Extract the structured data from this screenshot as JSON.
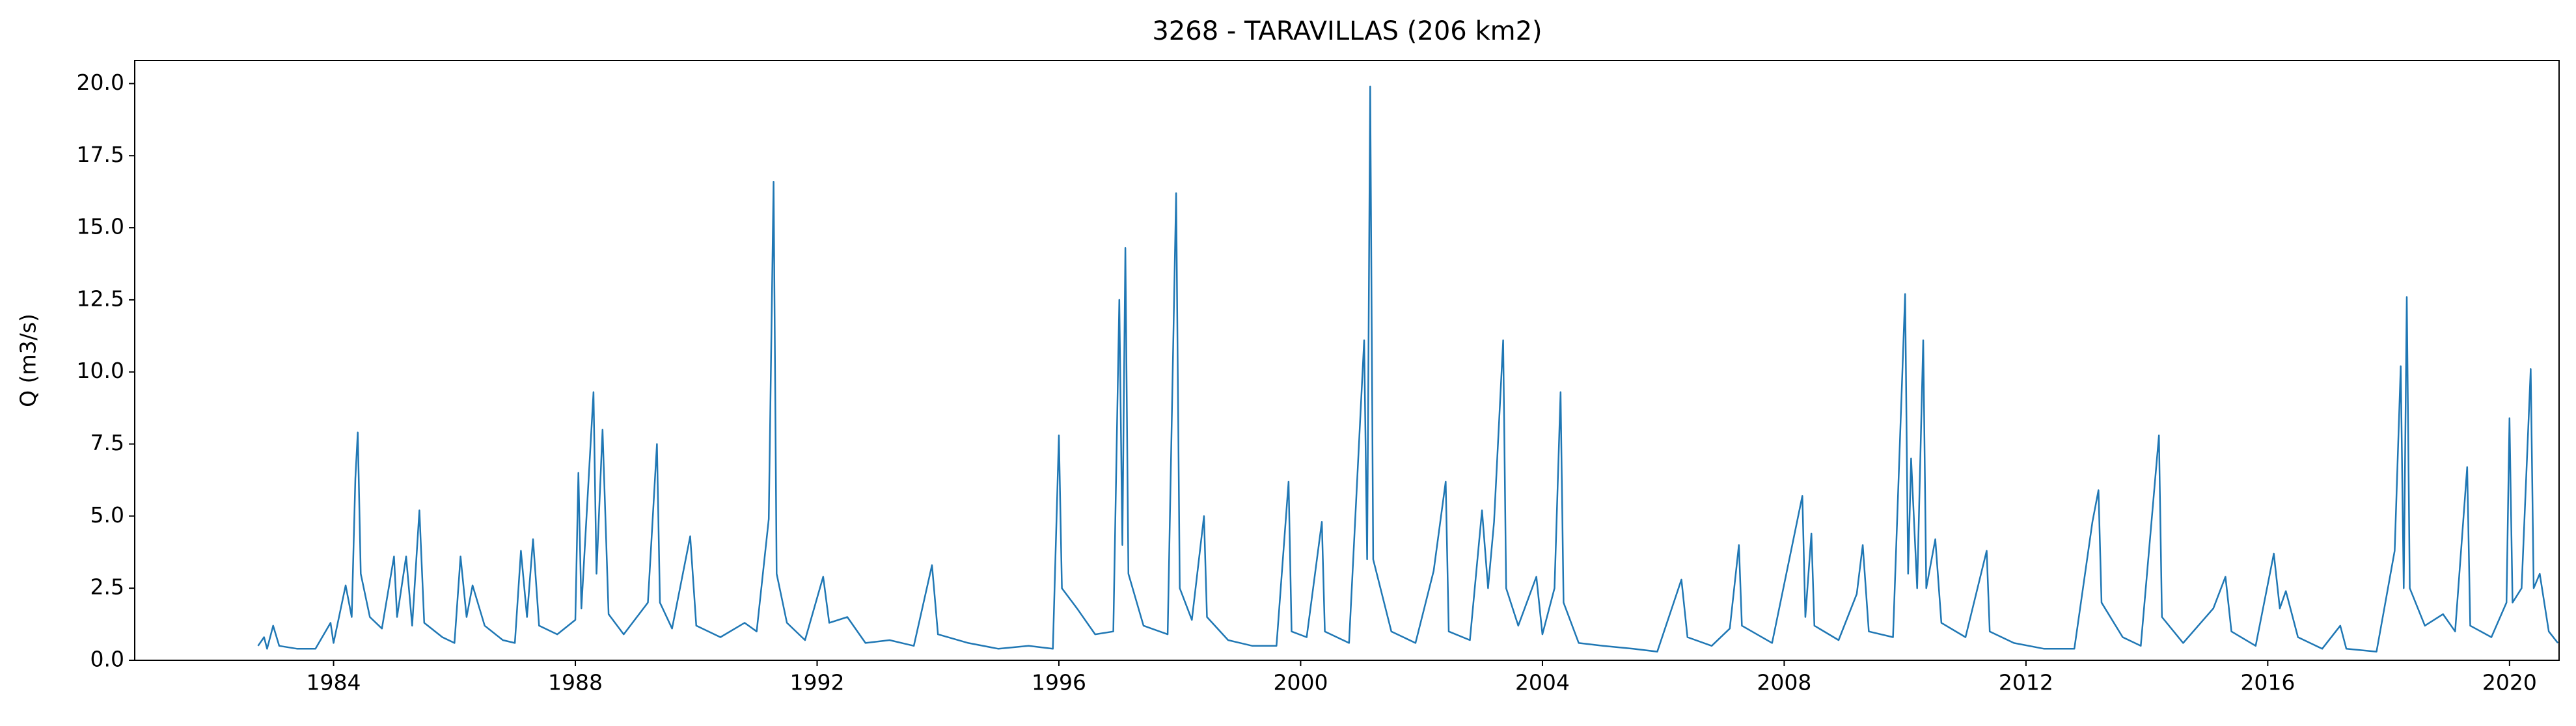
{
  "chart_data": {
    "type": "line",
    "title": "3268 - TARAVILLAS (206 km2)",
    "ylabel": "Q (m3/s)",
    "xlim": [
      1980.71,
      2020.82
    ],
    "ylim": [
      0,
      20.8
    ],
    "xticks": [
      1984,
      1988,
      1992,
      1996,
      2000,
      2004,
      2008,
      2012,
      2016,
      2020
    ],
    "yticks": [
      {
        "value": 0,
        "label": "0.0"
      },
      2.5,
      {
        "value": 5,
        "label": "5.0"
      },
      7.5,
      {
        "value": 10,
        "label": "10.0"
      },
      12.5,
      {
        "value": 15,
        "label": "15.0"
      },
      17.5,
      {
        "value": 20,
        "label": "20.0"
      }
    ],
    "grid": false,
    "series": [
      {
        "color": "#1f77b4",
        "x": [
          1982.75,
          1982.85,
          1982.9,
          1983.0,
          1983.1,
          1983.4,
          1983.7,
          1983.95,
          1984.0,
          1984.2,
          1984.3,
          1984.36,
          1984.4,
          1984.45,
          1984.6,
          1984.8,
          1985.0,
          1985.05,
          1985.2,
          1985.3,
          1985.42,
          1985.5,
          1985.8,
          1986.0,
          1986.1,
          1986.2,
          1986.3,
          1986.5,
          1986.8,
          1987.0,
          1987.1,
          1987.2,
          1987.3,
          1987.4,
          1987.7,
          1988.0,
          1988.05,
          1988.1,
          1988.3,
          1988.35,
          1988.45,
          1988.55,
          1988.8,
          1989.2,
          1989.35,
          1989.4,
          1989.6,
          1989.9,
          1990.0,
          1990.4,
          1990.8,
          1991.0,
          1991.2,
          1991.28,
          1991.33,
          1991.5,
          1991.8,
          1992.1,
          1992.2,
          1992.5,
          1992.8,
          1993.2,
          1993.6,
          1993.9,
          1994.0,
          1994.5,
          1995.0,
          1995.5,
          1995.9,
          1996.0,
          1996.05,
          1996.3,
          1996.6,
          1996.9,
          1997.0,
          1997.05,
          1997.1,
          1997.15,
          1997.4,
          1997.8,
          1997.94,
          1998.0,
          1998.2,
          1998.4,
          1998.45,
          1998.8,
          1999.2,
          1999.6,
          1999.8,
          1999.85,
          2000.1,
          2000.35,
          2000.4,
          2000.8,
          2001.05,
          2001.1,
          2001.15,
          2001.2,
          2001.5,
          2001.9,
          2002.2,
          2002.4,
          2002.45,
          2002.8,
          2003.0,
          2003.1,
          2003.2,
          2003.35,
          2003.4,
          2003.6,
          2003.9,
          2004.0,
          2004.2,
          2004.3,
          2004.35,
          2004.6,
          2005.0,
          2005.5,
          2005.9,
          2006.3,
          2006.4,
          2006.8,
          2007.1,
          2007.25,
          2007.3,
          2007.8,
          2008.3,
          2008.35,
          2008.45,
          2008.5,
          2008.9,
          2009.2,
          2009.3,
          2009.4,
          2009.8,
          2010.0,
          2010.05,
          2010.1,
          2010.2,
          2010.3,
          2010.35,
          2010.5,
          2010.6,
          2011.0,
          2011.35,
          2011.4,
          2011.8,
          2012.3,
          2012.8,
          2013.1,
          2013.2,
          2013.25,
          2013.6,
          2013.9,
          2014.2,
          2014.25,
          2014.6,
          2015.1,
          2015.3,
          2015.4,
          2015.8,
          2016.1,
          2016.2,
          2016.3,
          2016.5,
          2016.9,
          2017.2,
          2017.3,
          2017.8,
          2018.1,
          2018.2,
          2018.25,
          2018.3,
          2018.35,
          2018.6,
          2018.9,
          2019.1,
          2019.3,
          2019.35,
          2019.7,
          2019.95,
          2020.0,
          2020.05,
          2020.2,
          2020.35,
          2020.4,
          2020.5,
          2020.65,
          2020.8
        ],
        "values": [
          0.5,
          0.8,
          0.4,
          1.2,
          0.5,
          0.4,
          0.4,
          1.3,
          0.6,
          2.6,
          1.5,
          6.3,
          7.9,
          3.0,
          1.5,
          1.1,
          3.6,
          1.5,
          3.6,
          1.2,
          5.2,
          1.3,
          0.8,
          0.6,
          3.6,
          1.5,
          2.6,
          1.2,
          0.7,
          0.6,
          3.8,
          1.5,
          4.2,
          1.2,
          0.9,
          1.4,
          6.5,
          1.8,
          9.3,
          3.0,
          8.0,
          1.6,
          0.9,
          2.0,
          7.5,
          2.0,
          1.1,
          4.3,
          1.2,
          0.8,
          1.3,
          1.0,
          4.9,
          16.6,
          3.0,
          1.3,
          0.7,
          2.9,
          1.3,
          1.5,
          0.6,
          0.7,
          0.5,
          3.3,
          0.9,
          0.6,
          0.4,
          0.5,
          0.4,
          7.8,
          2.5,
          1.8,
          0.9,
          1.0,
          12.5,
          4.0,
          14.3,
          3.0,
          1.2,
          0.9,
          16.2,
          2.5,
          1.4,
          5.0,
          1.5,
          0.7,
          0.5,
          0.5,
          6.2,
          1.0,
          0.8,
          4.8,
          1.0,
          0.6,
          11.1,
          3.5,
          19.9,
          3.5,
          1.0,
          0.6,
          3.1,
          6.2,
          1.0,
          0.7,
          5.2,
          2.5,
          4.8,
          11.1,
          2.5,
          1.2,
          2.9,
          0.9,
          2.5,
          9.3,
          2.0,
          0.6,
          0.5,
          0.4,
          0.3,
          2.8,
          0.8,
          0.5,
          1.1,
          4.0,
          1.2,
          0.6,
          5.7,
          1.5,
          4.4,
          1.2,
          0.7,
          2.3,
          4.0,
          1.0,
          0.8,
          12.7,
          3.0,
          7.0,
          2.5,
          11.1,
          2.5,
          4.2,
          1.3,
          0.8,
          3.8,
          1.0,
          0.6,
          0.4,
          0.4,
          4.8,
          5.9,
          2.0,
          0.8,
          0.5,
          7.8,
          1.5,
          0.6,
          1.8,
          2.9,
          1.0,
          0.5,
          3.7,
          1.8,
          2.4,
          0.8,
          0.4,
          1.2,
          0.4,
          0.3,
          3.8,
          10.2,
          2.5,
          12.6,
          2.5,
          1.2,
          1.6,
          1.0,
          6.7,
          1.2,
          0.8,
          2.0,
          8.4,
          2.0,
          2.5,
          10.1,
          2.5,
          3.0,
          1.0,
          0.6
        ]
      }
    ]
  }
}
